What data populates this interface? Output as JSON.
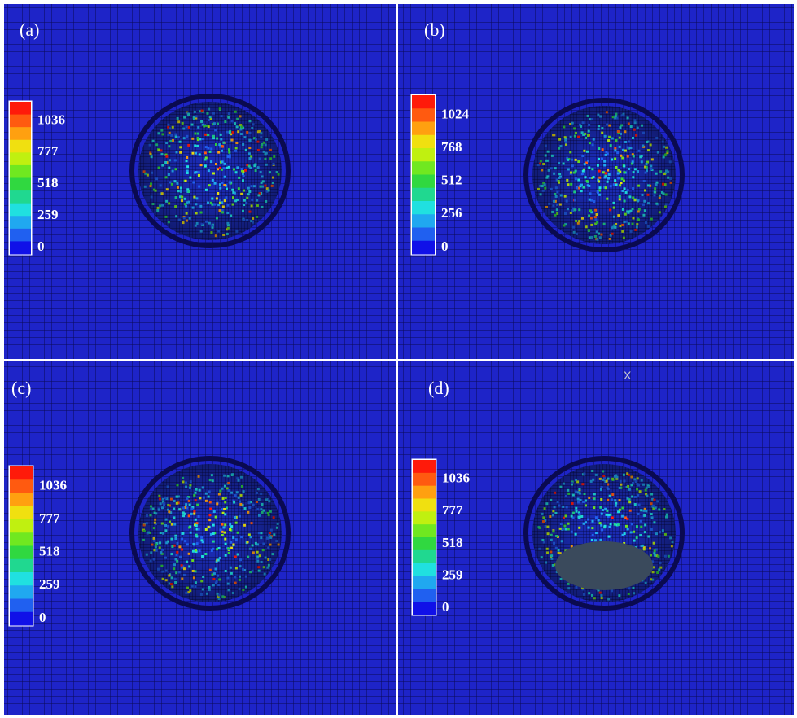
{
  "panels": [
    {
      "label": "(a)",
      "legend_labels": [
        "1036",
        "777",
        "518",
        "259",
        "0"
      ]
    },
    {
      "label": "(b)",
      "legend_labels": [
        "1024",
        "768",
        "512",
        "256",
        "0"
      ]
    },
    {
      "label": "(c)",
      "legend_labels": [
        "1036",
        "777",
        "518",
        "259",
        "0"
      ]
    },
    {
      "label": "(d)",
      "legend_labels": [
        "1036",
        "777",
        "518",
        "259",
        "0"
      ]
    }
  ],
  "axis_marker": "X"
}
